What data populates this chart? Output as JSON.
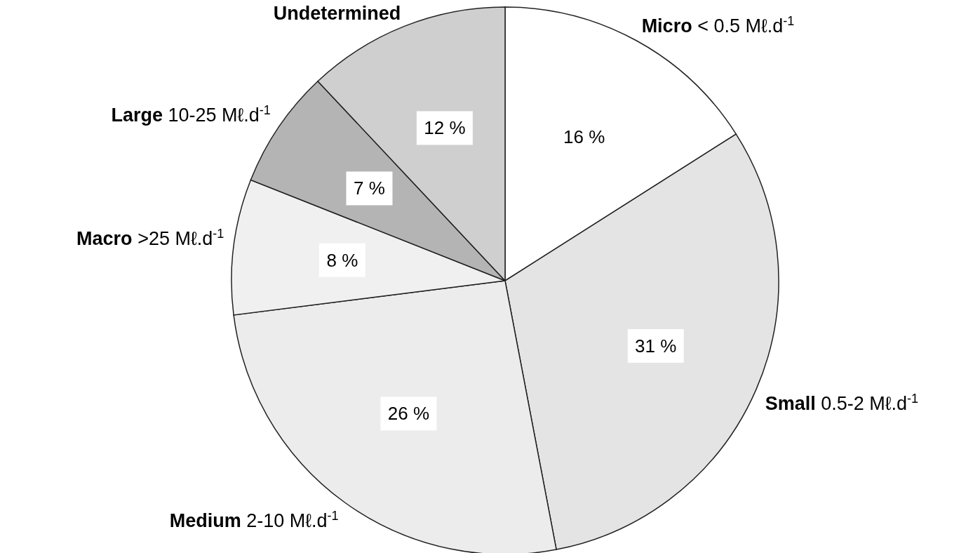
{
  "chart_data": {
    "type": "pie",
    "categories": [
      "Micro < 0.5 Mℓ.d$^{-1}$",
      "Small 0.5-2 Mℓ.d$^{-1}$",
      "Medium 2-10 Mℓ.d$^{-1}$",
      "Macro >25 Mℓ.d$^{-1}$",
      "Large 10-25 Mℓ.d$^{-1}$",
      "Undetermined"
    ],
    "values": [
      16,
      31,
      26,
      8,
      7,
      12
    ],
    "colors": [
      "#ffffff",
      "#e4e4e4",
      "#ececec",
      "#f0f0f0",
      "#b4b4b4",
      "#cfcfcf"
    ],
    "value_labels": [
      "16 %",
      "31 %",
      "26 %",
      "8 %",
      "7 %",
      "12 %"
    ]
  }
}
